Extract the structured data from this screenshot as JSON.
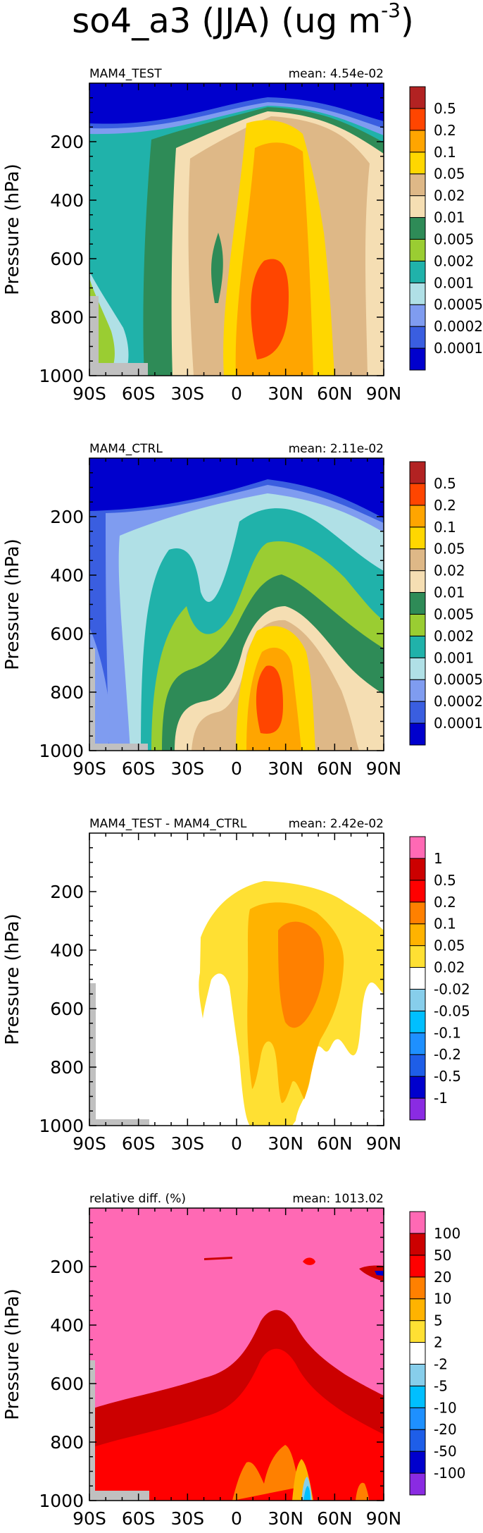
{
  "title": "so4_a3 (JJA) (ug m",
  "title_sup": "-3",
  "title_close": ")",
  "axis": {
    "ylabel": "Pressure (hPa)",
    "yticks": [
      "200",
      "400",
      "600",
      "800",
      "1000"
    ],
    "xticks": [
      "90S",
      "60S",
      "30S",
      "0",
      "30N",
      "60N",
      "90N"
    ]
  },
  "colors": {
    "abs": [
      "#0000cd",
      "#3a5ee0",
      "#7f9cf0",
      "#b0e0e6",
      "#20b2aa",
      "#9acd32",
      "#2e8b57",
      "#f5deb3",
      "#deb887",
      "#ffd700",
      "#ffa500",
      "#ff4500",
      "#b22222"
    ],
    "diff": [
      "#8a2be2",
      "#0000cd",
      "#1e5ee8",
      "#1e90ff",
      "#00bfff",
      "#87ceeb",
      "#ffffff",
      "#ffe033",
      "#ffb300",
      "#ff8000",
      "#ff0000",
      "#cc0000",
      "#ff69b4"
    ],
    "missing": "#c0c0c0"
  },
  "chart_data": [
    {
      "type": "heatmap",
      "panel_title": "MAM4_TEST",
      "mean_label": "mean: 4.54e-02",
      "levels": [
        "0.0001",
        "0.0002",
        "0.0005",
        "0.001",
        "0.002",
        "0.005",
        "0.01",
        "0.02",
        "0.05",
        "0.1",
        "0.2",
        "0.5"
      ],
      "palette": "abs",
      "x_range": [
        -90,
        90
      ],
      "y_range": [
        1000,
        0
      ],
      "y_scale": "linear"
    },
    {
      "type": "heatmap",
      "panel_title": "MAM4_CTRL",
      "mean_label": "mean: 2.11e-02",
      "levels": [
        "0.0001",
        "0.0002",
        "0.0005",
        "0.001",
        "0.002",
        "0.005",
        "0.01",
        "0.02",
        "0.05",
        "0.1",
        "0.2",
        "0.5"
      ],
      "palette": "abs",
      "x_range": [
        -90,
        90
      ],
      "y_range": [
        1000,
        0
      ],
      "y_scale": "linear"
    },
    {
      "type": "heatmap",
      "panel_title": "MAM4_TEST - MAM4_CTRL",
      "mean_label": "mean: 2.42e-02",
      "levels": [
        "-1",
        "-0.5",
        "-0.2",
        "-0.1",
        "-0.05",
        "-0.02",
        "0.02",
        "0.05",
        "0.1",
        "0.2",
        "0.5",
        "1"
      ],
      "palette": "diff",
      "x_range": [
        -90,
        90
      ],
      "y_range": [
        1000,
        0
      ],
      "y_scale": "linear"
    },
    {
      "type": "heatmap",
      "panel_title": "relative diff. (%)",
      "mean_label": "mean: 1013.02",
      "levels": [
        "-100",
        "-50",
        "-20",
        "-10",
        "-5",
        "-2",
        "2",
        "5",
        "10",
        "20",
        "50",
        "100"
      ],
      "palette": "diff",
      "x_range": [
        -90,
        90
      ],
      "y_range": [
        1000,
        0
      ],
      "y_scale": "linear"
    }
  ]
}
